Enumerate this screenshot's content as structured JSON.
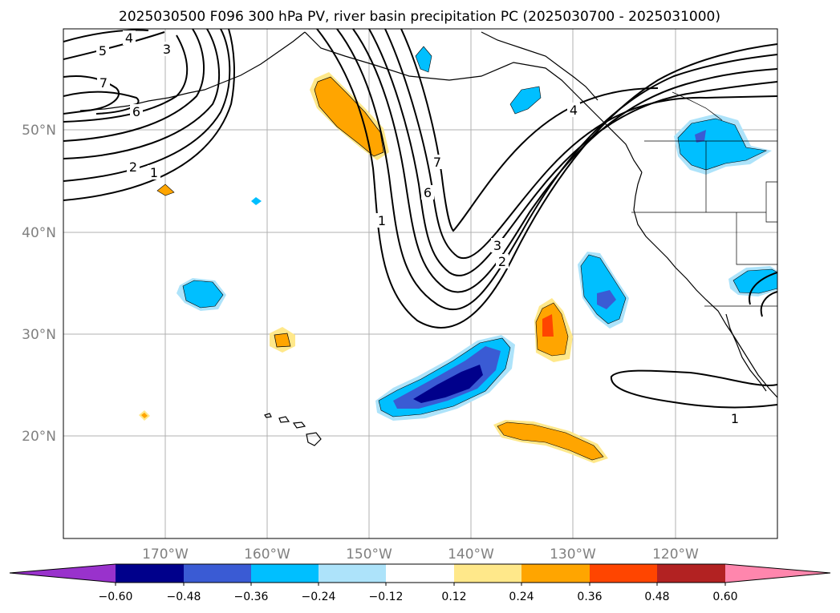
{
  "title": "2025030500 F096 300 hPa PV, river basin precipitation PC (2025030700 - 2025031000)",
  "map": {
    "lat_labels": [
      "50°N",
      "40°N",
      "30°N",
      "20°N"
    ],
    "lon_labels": [
      "170°W",
      "160°W",
      "150°W",
      "140°W",
      "130°W",
      "120°W"
    ],
    "contour_labels": [
      "5",
      "4",
      "3",
      "7",
      "6",
      "2",
      "1",
      "7",
      "6",
      "1",
      "3",
      "2",
      "4",
      "1"
    ]
  },
  "colorbar": {
    "ticks": [
      "−0.60",
      "−0.48",
      "−0.36",
      "−0.24",
      "−0.12",
      "0.12",
      "0.24",
      "0.36",
      "0.48",
      "0.60"
    ],
    "colors": [
      "#9932CC",
      "#00008B",
      "#3A5BD4",
      "#00BFFF",
      "#ADE3FA",
      "#FFFFFF",
      "#FFE88A",
      "#FFA500",
      "#FF4500",
      "#B22222",
      "#FF86AD"
    ]
  },
  "colors": {
    "grid": "#b0b0b0",
    "contour": "#000000",
    "axis_label": "#808080"
  }
}
